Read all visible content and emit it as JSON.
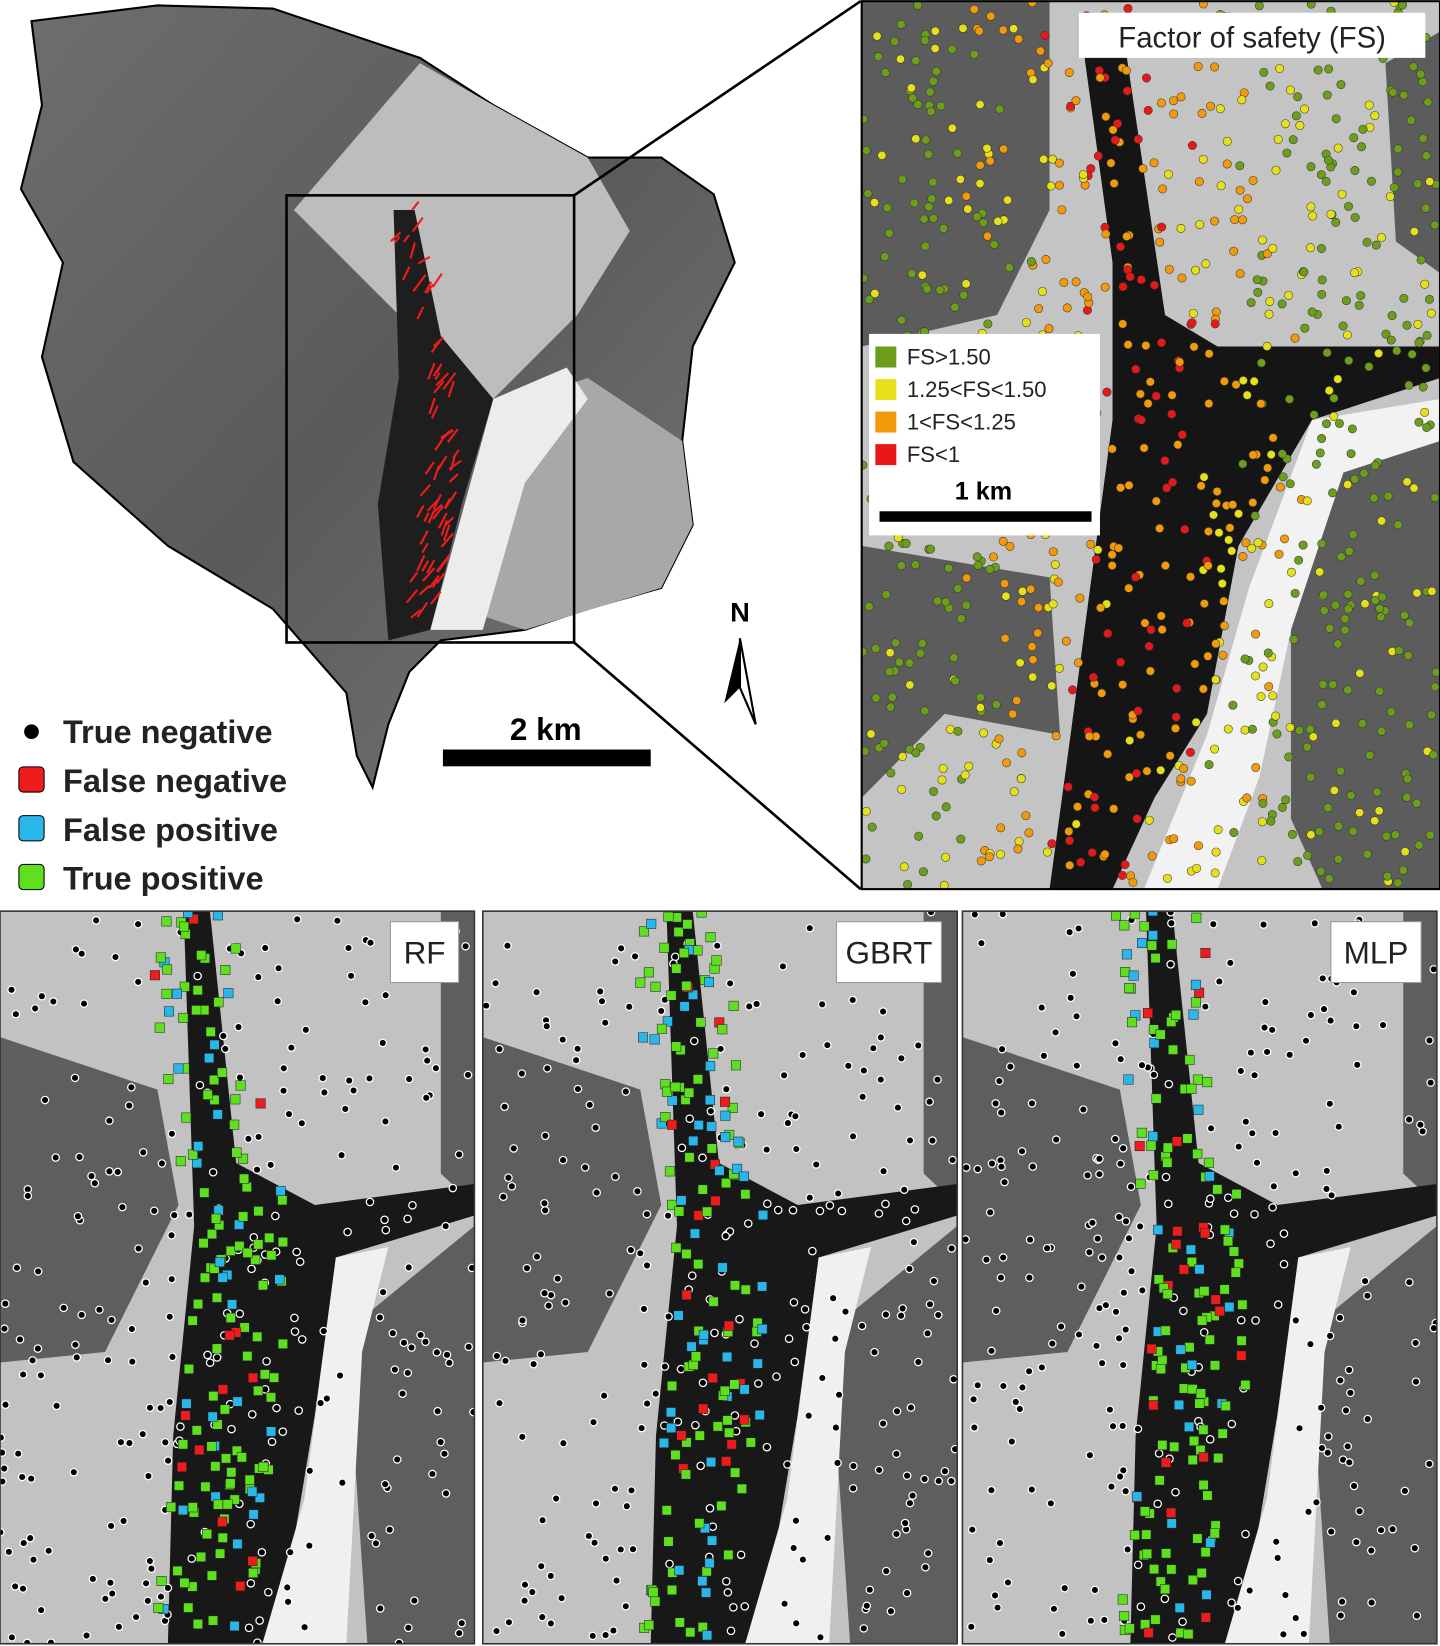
{
  "overview_map": {
    "scale_bar": "2 km",
    "north_label": "N",
    "legend": [
      {
        "label": "True negative",
        "color": "#000000"
      },
      {
        "label": "False negative",
        "color": "#ee1c1c"
      },
      {
        "label": "False positive",
        "color": "#29b6e8"
      },
      {
        "label": "True positive",
        "color": "#5ee01e"
      }
    ]
  },
  "inset_map": {
    "title": "Factor of safety (FS)",
    "scale_bar": "1 km",
    "legend": [
      {
        "label": "FS>1.50",
        "color": "#6c9e1c"
      },
      {
        "label": "1.25<FS<1.50",
        "color": "#e6e01a"
      },
      {
        "label": "1<FS<1.25",
        "color": "#f29a0a"
      },
      {
        "label": "FS<1",
        "color": "#e81818"
      }
    ]
  },
  "panels": [
    {
      "label": "RF"
    },
    {
      "label": "GBRT"
    },
    {
      "label": "MLP"
    }
  ]
}
